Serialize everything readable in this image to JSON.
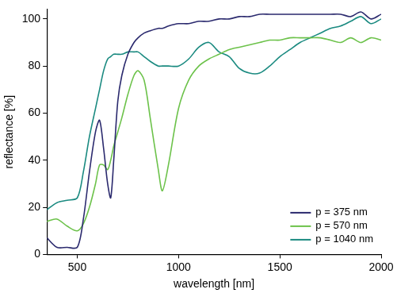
{
  "chart_data": {
    "type": "line",
    "x_label": "wavelength [nm]",
    "y_label": "reflectance [%]",
    "x": [
      350,
      400,
      450,
      500,
      530,
      560,
      590,
      610,
      630,
      650,
      665,
      680,
      700,
      720,
      750,
      780,
      800,
      830,
      860,
      900,
      920,
      950,
      1000,
      1050,
      1100,
      1150,
      1200,
      1250,
      1300,
      1350,
      1400,
      1450,
      1500,
      1550,
      1600,
      1650,
      1700,
      1750,
      1800,
      1850,
      1900,
      1950,
      2000
    ],
    "series": [
      {
        "name": "p = 375 nm",
        "color": "#2b2a6e",
        "values": [
          7,
          3,
          3,
          3,
          15,
          35,
          52,
          57,
          45,
          30,
          24,
          40,
          65,
          76,
          85,
          90,
          92,
          94,
          95,
          96,
          96,
          97,
          98,
          98,
          99,
          99,
          100,
          100,
          101,
          101,
          102,
          102,
          102,
          102,
          102,
          102,
          102,
          102,
          102,
          101,
          103,
          100,
          102
        ]
      },
      {
        "name": "p = 570 nm",
        "color": "#6cc24a",
        "values": [
          14,
          15,
          12,
          10,
          13,
          20,
          30,
          38,
          38,
          36,
          40,
          46,
          52,
          58,
          68,
          76,
          78,
          74,
          58,
          36,
          27,
          38,
          62,
          74,
          80,
          83,
          85,
          87,
          88,
          89,
          90,
          91,
          91,
          92,
          92,
          92,
          92,
          91,
          90,
          92,
          90,
          92,
          91
        ]
      },
      {
        "name": "p = 1040 nm",
        "color": "#1a8a80",
        "values": [
          19,
          22,
          23,
          24,
          35,
          50,
          62,
          70,
          78,
          83,
          84,
          85,
          85,
          85,
          86,
          86,
          86,
          84,
          82,
          80,
          80,
          80,
          80,
          83,
          88,
          90,
          86,
          84,
          79,
          77,
          77,
          80,
          84,
          87,
          90,
          92,
          94,
          96,
          97,
          99,
          101,
          98,
          100
        ]
      }
    ],
    "xlim": [
      350,
      2000
    ],
    "ylim": [
      0,
      104
    ],
    "xticks": [
      500,
      1000,
      1500,
      2000
    ],
    "yticks": [
      0,
      20,
      40,
      60,
      80,
      100
    ],
    "grid": false,
    "legend": "lower right"
  }
}
